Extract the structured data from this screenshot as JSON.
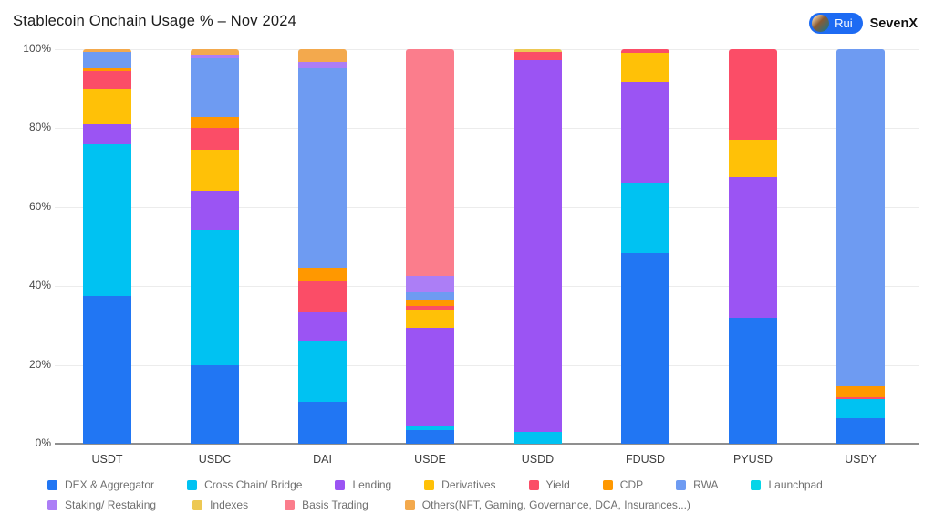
{
  "title": "Stablecoin Onchain Usage % – Nov 2024",
  "header": {
    "badge_label": "Rui",
    "badge_color": "#1D6BF3",
    "brand": "SevenX"
  },
  "chart_data": {
    "type": "bar",
    "stacked": true,
    "unit": "%",
    "title": "Stablecoin Onchain Usage % – Nov 2024",
    "xlabel": "",
    "ylabel": "",
    "ylim": [
      0,
      100
    ],
    "grid": true,
    "legend_position": "bottom",
    "categories": [
      "USDT",
      "USDC",
      "DAI",
      "USDE",
      "USDD",
      "FDUSD",
      "PYUSD",
      "USDY"
    ],
    "y_ticks": [
      "0%",
      "20%",
      "40%",
      "60%",
      "80%",
      "100%"
    ],
    "series": [
      {
        "name": "DEX & Aggregator",
        "color": "#2176F3",
        "values": [
          37.5,
          20.0,
          10.6,
          3.5,
          0,
          48.4,
          31.9,
          6.4
        ]
      },
      {
        "name": "Cross Chain/ Bridge",
        "color": "#00C2F2",
        "values": [
          38.5,
          34.2,
          15.5,
          0.8,
          3.0,
          17.8,
          0,
          4.9
        ]
      },
      {
        "name": "Lending",
        "color": "#9B54F3",
        "values": [
          5.0,
          10.0,
          7.3,
          25.2,
          94.3,
          25.5,
          35.8,
          0
        ]
      },
      {
        "name": "Derivatives",
        "color": "#FFC107",
        "values": [
          9.0,
          10.4,
          0,
          4.2,
          0,
          7.3,
          9.3,
          0
        ]
      },
      {
        "name": "Yield",
        "color": "#FB4D67",
        "values": [
          4.4,
          5.5,
          7.7,
          1.2,
          2.0,
          1.0,
          23.0,
          0.5
        ]
      },
      {
        "name": "CDP",
        "color": "#FF9800",
        "values": [
          0.8,
          2.7,
          3.5,
          1.5,
          0,
          0,
          0,
          2.7
        ]
      },
      {
        "name": "RWA",
        "color": "#6E9BF2",
        "values": [
          4.2,
          15.0,
          50.5,
          2.0,
          0,
          0,
          0,
          85.5
        ]
      },
      {
        "name": "Launchpad",
        "color": "#05D5E8",
        "values": [
          0,
          0,
          0,
          0,
          0,
          0,
          0,
          0
        ]
      },
      {
        "name": "Staking/ Restaking",
        "color": "#AC7EF6",
        "values": [
          0,
          0.8,
          1.6,
          4.2,
          0,
          0,
          0,
          0
        ]
      },
      {
        "name": "Indexes",
        "color": "#EDC853",
        "values": [
          0,
          0,
          0,
          0,
          0.7,
          0,
          0,
          0
        ]
      },
      {
        "name": "Basis Trading",
        "color": "#FB7D8C",
        "values": [
          0,
          0,
          0,
          57.4,
          0,
          0,
          0,
          0
        ]
      },
      {
        "name": "Others(NFT, Gaming, Governance, DCA, Insurances...)",
        "color": "#F3A94D",
        "values": [
          0.6,
          1.4,
          3.3,
          0,
          0,
          0,
          0,
          0
        ]
      }
    ]
  }
}
